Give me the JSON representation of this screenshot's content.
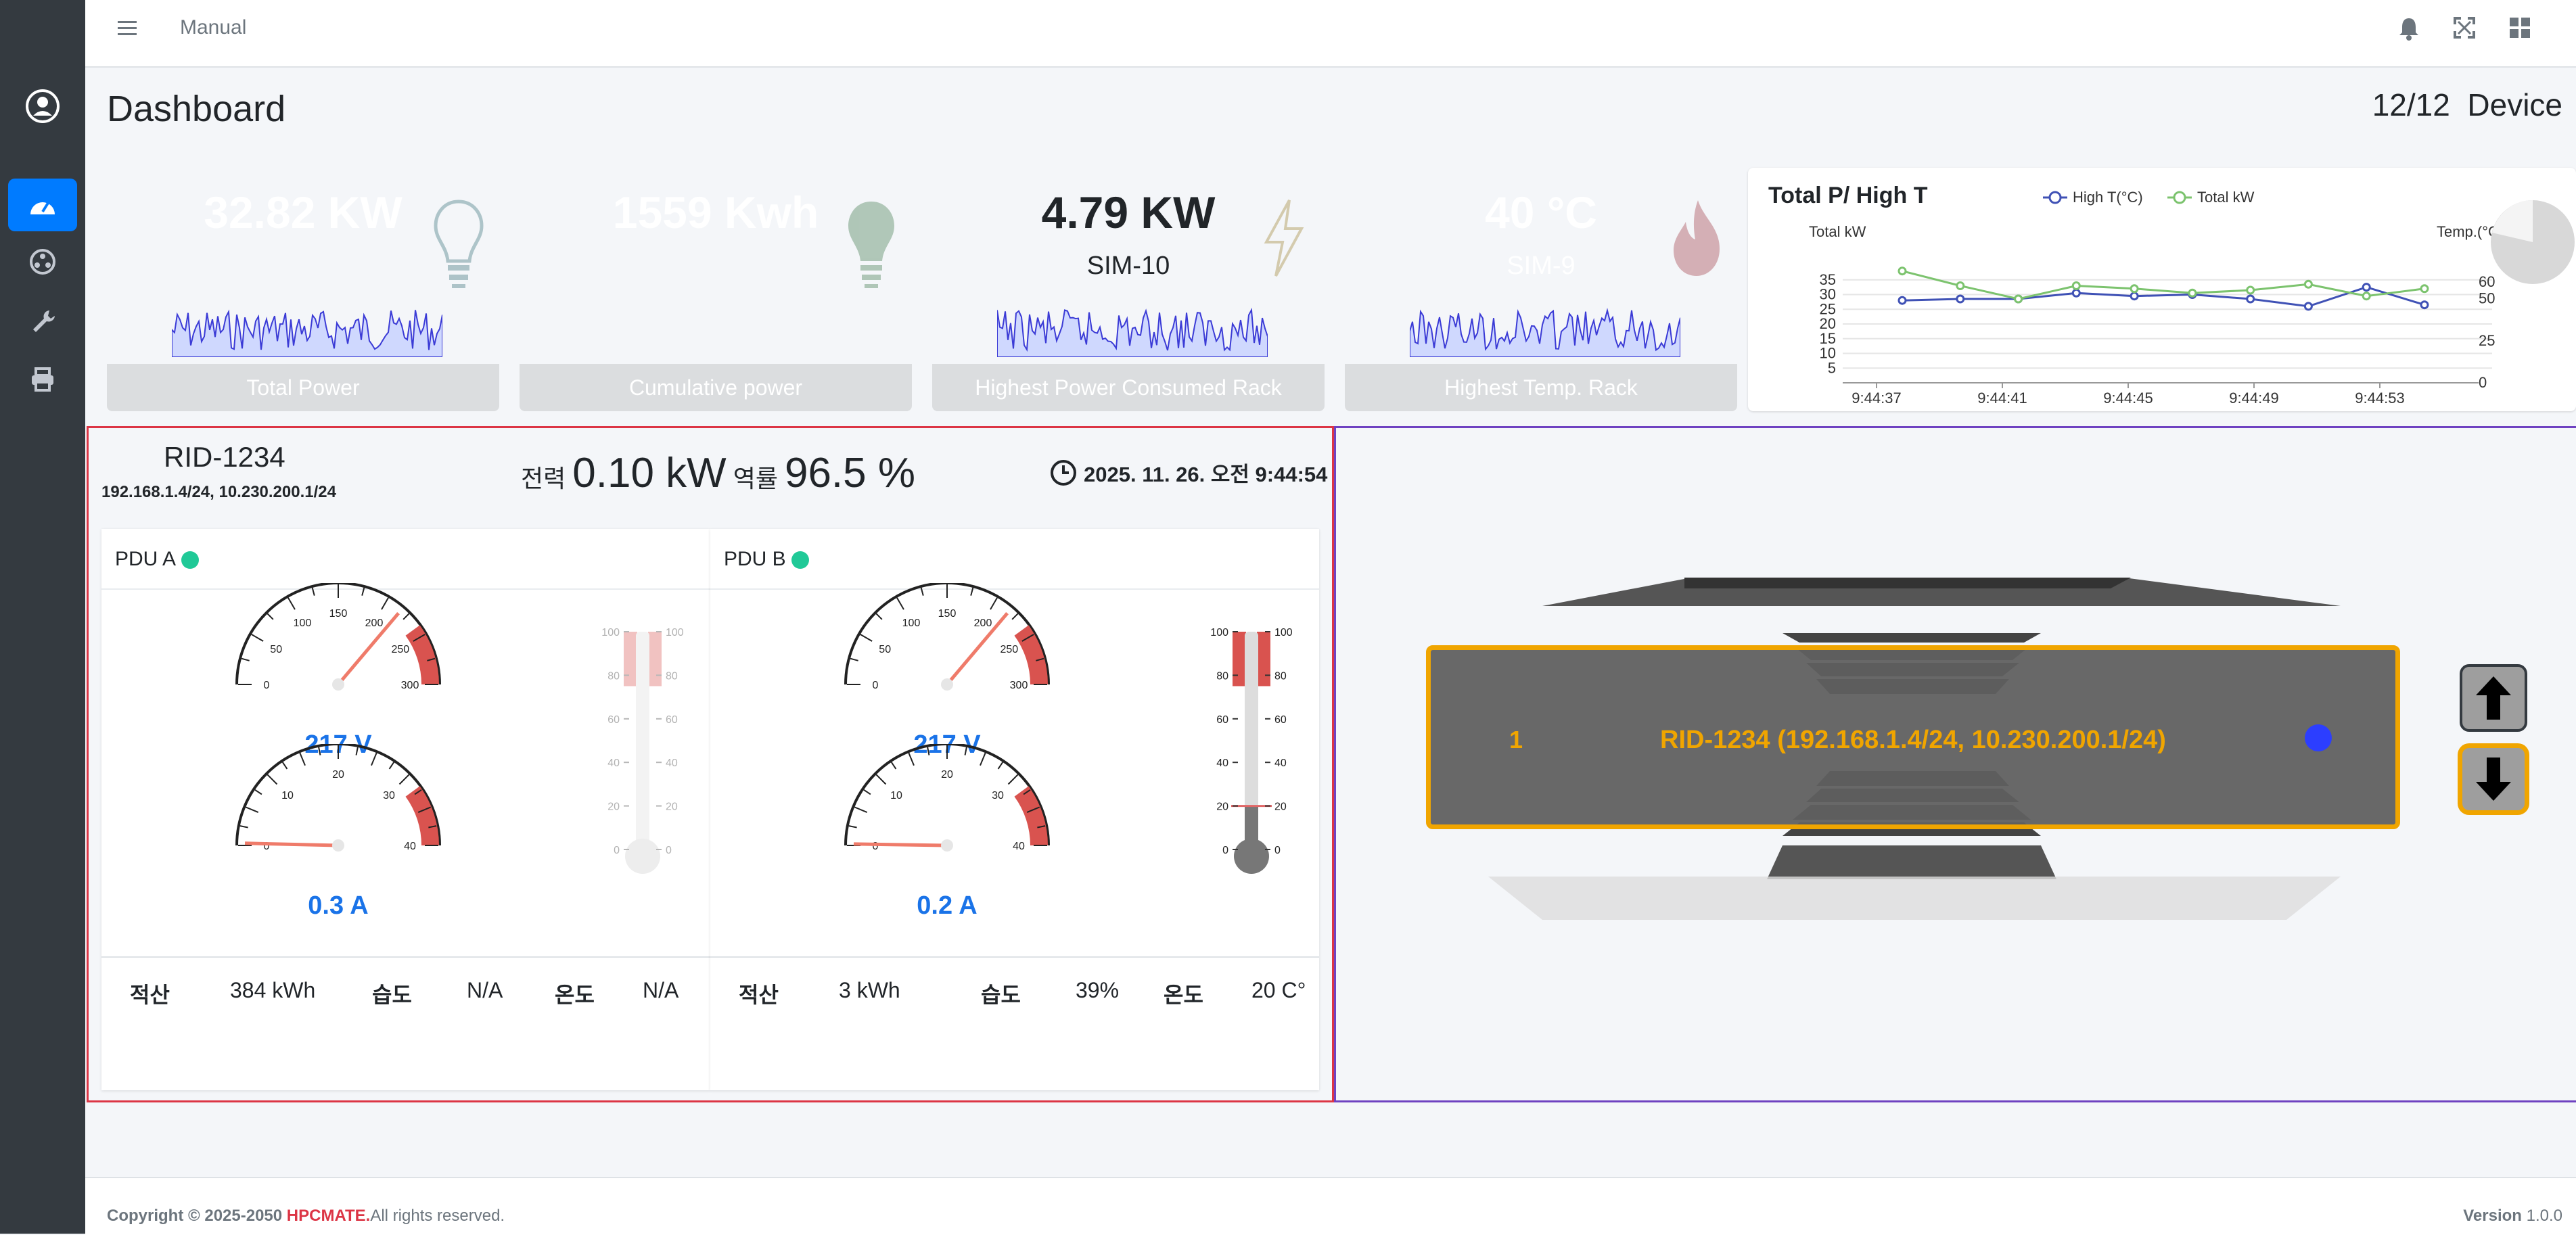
{
  "topbar": {
    "manual": "Manual"
  },
  "page": {
    "title": "Dashboard",
    "device_count": "12/12",
    "device_label": "Device"
  },
  "cards": [
    {
      "value": "32.82 KW",
      "sub": "",
      "label": "Total Power",
      "color": "#17a2b8",
      "icon": "lightbulb-icon"
    },
    {
      "value": "1559 Kwh",
      "sub": "",
      "label": "Cumulative power",
      "color": "#28a745",
      "icon": "lightbulb-icon"
    },
    {
      "value": "4.79 KW",
      "sub": "SIM-10",
      "label": "Highest Power Consumed Rack",
      "color": "#ffc107",
      "icon": "bolt-icon"
    },
    {
      "value": "40 °C",
      "sub": "SIM-9",
      "label": "Highest Temp. Rack",
      "color": "#dc3545",
      "icon": "fire-icon"
    }
  ],
  "chart_data": {
    "type": "line",
    "title": "Total P/ High T",
    "left_axis_label": "Total kW",
    "right_axis_label": "Temp.(°C)",
    "x_tick_labels": [
      "9:44:37",
      "9:44:41",
      "9:44:45",
      "9:44:49",
      "9:44:53"
    ],
    "left_ticks": [
      35,
      30,
      25,
      20,
      15,
      10,
      5
    ],
    "right_ticks": [
      60,
      50,
      25,
      0
    ],
    "series": [
      {
        "name": "High T(°C)",
        "color": "#3f51b5",
        "axis": "left",
        "values": [
          28,
          28.5,
          28.5,
          30.5,
          29.5,
          30,
          28.5,
          26,
          32.5,
          26.5
        ]
      },
      {
        "name": "Total kW",
        "color": "#7cc36e",
        "axis": "left",
        "values": [
          38,
          33,
          28.5,
          33,
          32,
          30.5,
          31.5,
          33.5,
          29.5,
          32
        ]
      }
    ]
  },
  "rack": {
    "rid": "RID-1234",
    "ips": "192.168.1.4/24, 10.230.200.1/24",
    "power_label": "전력",
    "power_value": "0.10 kW",
    "pf_label": "역률",
    "pf_value": "96.5 %",
    "datetime": "2025. 11. 26. 오전 9:44:54"
  },
  "pdus": [
    {
      "name": "PDU A",
      "voltage": "217 V",
      "voltage_value": 217,
      "current": "0.3 A",
      "current_value": 0.3,
      "therm_active": false,
      "accum_label": "적산",
      "accum": "384 kWh",
      "hum_label": "습도",
      "hum": "N/A",
      "temp_label": "온도",
      "temp": "N/A"
    },
    {
      "name": "PDU B",
      "voltage": "217 V",
      "voltage_value": 217,
      "current": "0.2 A",
      "current_value": 0.2,
      "therm_active": true,
      "accum_label": "적산",
      "accum": "3 kWh",
      "hum_label": "습도",
      "hum": "39%",
      "temp_label": "온도",
      "temp": "20 C°",
      "temp_value": 20
    }
  ],
  "gauge_ticks": {
    "voltage": [
      "0",
      "50",
      "100",
      "150",
      "200",
      "250",
      "300"
    ],
    "current": [
      "0",
      "10",
      "20",
      "30",
      "40"
    ],
    "therm": [
      "100",
      "80",
      "60",
      "40",
      "20",
      "0"
    ]
  },
  "rack_view": {
    "index": "1",
    "label": "RID-1234 (192.168.1.4/24, 10.230.200.1/24)"
  },
  "footer": {
    "copyright": "Copyright © 2025-2050 ",
    "brand": "HPCMATE.",
    "rights": "All rights reserved.",
    "version_label": "Version",
    "version": "1.0.0"
  }
}
